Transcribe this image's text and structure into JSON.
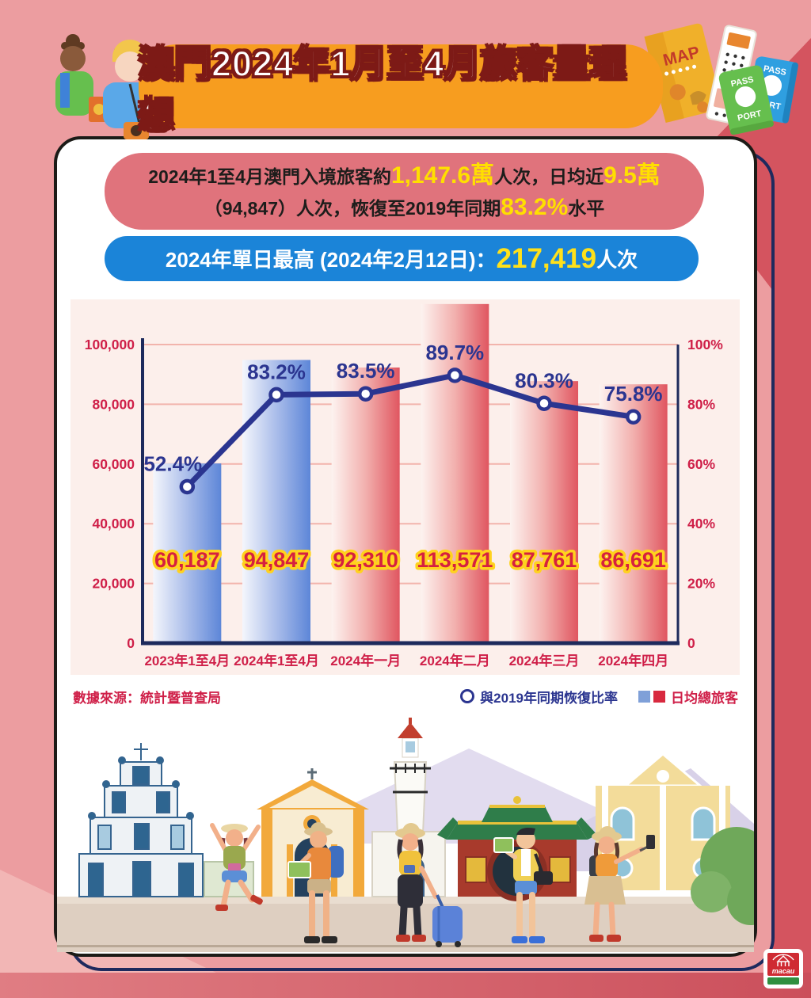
{
  "banner": {
    "title": "澳門2024年1月至4月旅客量理想"
  },
  "summary": {
    "l1a": "2024年1至4月澳門入境旅客約",
    "l1b": "1,147.6萬",
    "l1c": "人次，日均近",
    "l1d": "9.5萬",
    "l2a": "（94,847）人次，恢復至2019年同期",
    "l2b": "83.2%",
    "l2c": "水平"
  },
  "record": {
    "prefix": "2024年單日最高 (2024年2月12日)：",
    "value": "217,419",
    "suffix": "人次"
  },
  "chart_data": {
    "type": "bar",
    "categories": [
      "2023年1至4月",
      "2024年1至4月",
      "2024年一月",
      "2024年二月",
      "2024年三月",
      "2024年四月"
    ],
    "series": [
      {
        "name": "日均總旅客",
        "type": "bar",
        "values": [
          60187,
          94847,
          92310,
          113571,
          87761,
          86691
        ],
        "labels": [
          "60,187",
          "94,847",
          "92,310",
          "113,571",
          "87,761",
          "86,691"
        ],
        "bar_styles": [
          "blue",
          "blue",
          "red",
          "red",
          "red",
          "red"
        ]
      },
      {
        "name": "與2019年同期恢復比率",
        "type": "line",
        "values": [
          52.4,
          83.2,
          83.5,
          89.7,
          80.3,
          75.8
        ],
        "labels": [
          "52.4%",
          "83.2%",
          "83.5%",
          "89.7%",
          "80.3%",
          "75.8%"
        ]
      }
    ],
    "left_axis": {
      "ticks": [
        "100,000",
        "80,000",
        "60,000",
        "40,000",
        "20,000",
        "0"
      ],
      "max": 100000
    },
    "right_axis": {
      "ticks": [
        "100%",
        "80%",
        "60%",
        "40%",
        "20%",
        "0"
      ],
      "max": 100
    },
    "grid": true,
    "legend_position": "bottom-right",
    "source": "數據來源：統計暨普查局",
    "legend_line": "與2019年同期恢復比率",
    "legend_bar": "日均總旅客"
  },
  "decor": {
    "map": "MAP",
    "pass_top": "PASS",
    "pass_bottom": "PORT",
    "logo": "macau"
  },
  "colors": {
    "crimson": "#cf1f48",
    "navy": "#2b3590",
    "axis_navy": "#1d2a5c",
    "bar_blue": "#5d86d8",
    "bar_red": "#e05660",
    "yellow": "#ffdf00",
    "label_outline_yellow": "#ffd21e",
    "banner_orange": "#f79d1f",
    "pill_red": "#e0737c",
    "pill_blue": "#1b84d8",
    "bg_pink": "#ec9da0",
    "bg_dark_red": "#d4545f",
    "panel_pink": "#fcefeb"
  }
}
